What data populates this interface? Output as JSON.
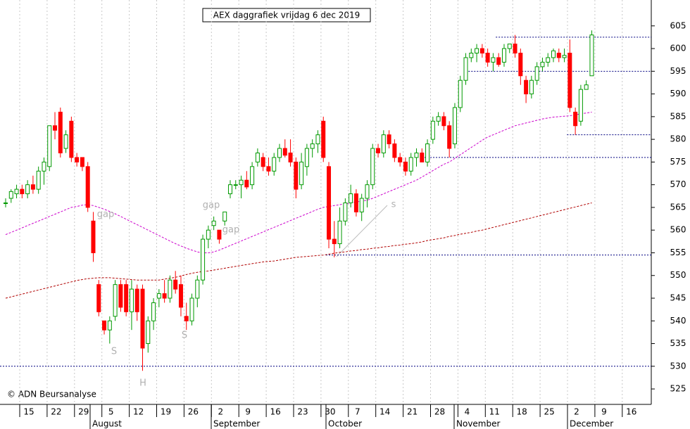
{
  "chart_data": {
    "type": "candlestick",
    "title": "AEX daggrafiek vrijdag 6 dec 2019",
    "credit": "© ADN Beursanalyse",
    "up_color": "#009900",
    "down_color": "#ff0000",
    "ylim": [
      521.6,
      610.7
    ],
    "yticks": [
      525,
      530,
      535,
      540,
      545,
      550,
      555,
      560,
      565,
      570,
      575,
      580,
      585,
      590,
      595,
      600,
      605
    ],
    "weeks": [
      "15",
      "22",
      "29",
      "5",
      "12",
      "19",
      "26",
      "2",
      "9",
      "16",
      "23",
      "30",
      "7",
      "14",
      "21",
      "28",
      "4",
      "11",
      "18",
      "25",
      "2",
      "9",
      "16"
    ],
    "months": [
      "August",
      "September",
      "October",
      "November",
      "December"
    ],
    "open": [
      566,
      567,
      568,
      569,
      568,
      570,
      569,
      573,
      574,
      583,
      586,
      578,
      584,
      576,
      576,
      574,
      562,
      548,
      540,
      538,
      541,
      548,
      548,
      542,
      547,
      547,
      535,
      540,
      545,
      546,
      545,
      549,
      548,
      541,
      540,
      545,
      549,
      558,
      561,
      560,
      562,
      568,
      570,
      570,
      571,
      570,
      575,
      576,
      574,
      573,
      576,
      578,
      577,
      575,
      570,
      574,
      578,
      579,
      584,
      574,
      558,
      557,
      562,
      566,
      568,
      564,
      567,
      570,
      578,
      577,
      581,
      579,
      576,
      575,
      573,
      576,
      577,
      575,
      580,
      584,
      585,
      583,
      579,
      587,
      593,
      598,
      599,
      600,
      599,
      597,
      598,
      597,
      600,
      601,
      599,
      593,
      590,
      593,
      596,
      597,
      598,
      599,
      598,
      599,
      586,
      584,
      591,
      594
    ],
    "high": [
      567,
      569,
      570,
      570,
      571,
      572,
      574,
      576,
      583,
      586,
      587,
      582,
      585,
      577,
      576,
      575,
      564,
      549,
      540,
      541,
      549,
      549,
      549,
      549,
      548,
      548,
      541,
      545,
      547,
      549,
      550,
      551,
      550,
      544,
      546,
      550,
      559,
      561,
      563,
      560,
      564,
      571,
      571,
      572,
      573,
      575,
      578,
      577,
      576,
      577,
      579,
      580,
      580,
      576,
      577,
      579,
      580,
      582,
      585,
      575,
      562,
      565,
      567,
      570,
      569,
      568,
      571,
      579,
      579,
      582,
      582,
      580,
      577,
      576,
      577,
      578,
      578,
      580,
      585,
      586,
      586,
      584,
      588,
      594,
      599,
      600,
      601,
      601,
      600,
      599,
      599,
      601,
      601,
      603,
      600,
      594,
      594,
      597,
      598,
      599,
      600,
      600,
      600,
      602,
      587,
      592,
      593,
      604
    ],
    "low": [
      565,
      566,
      567,
      567,
      567,
      568,
      568,
      570,
      573,
      580,
      576,
      577,
      575,
      574,
      573,
      564,
      553,
      541,
      537,
      535,
      540,
      542,
      541,
      538,
      540,
      529,
      533,
      538,
      543,
      544,
      544,
      546,
      541,
      538,
      539,
      543,
      548,
      556,
      560,
      557,
      561,
      567,
      569,
      567,
      569,
      569,
      574,
      573,
      572,
      572,
      575,
      576,
      574,
      567,
      569,
      572,
      576,
      577,
      575,
      556,
      554,
      556,
      561,
      565,
      563,
      562,
      565,
      569,
      576,
      576,
      578,
      575,
      574,
      572,
      572,
      574,
      575,
      574,
      579,
      583,
      582,
      576,
      578,
      586,
      592,
      597,
      597,
      598,
      596,
      595,
      596,
      596,
      599,
      598,
      592,
      588,
      589,
      592,
      595,
      596,
      597,
      597,
      597,
      586,
      581,
      583,
      591,
      594
    ],
    "close": [
      566,
      568.5,
      569,
      568,
      570,
      569,
      573,
      575,
      583,
      582,
      577,
      581,
      576,
      575,
      574,
      565,
      555,
      542,
      538,
      540,
      548,
      543,
      542,
      547,
      542,
      534,
      540,
      544,
      546,
      545,
      549,
      547,
      543,
      540,
      545,
      549,
      558,
      560,
      562,
      558,
      564,
      570,
      570,
      571,
      569.5,
      574,
      577,
      574,
      573,
      576,
      578,
      576.5,
      575,
      569,
      575,
      578,
      579,
      581,
      576,
      558,
      557,
      562,
      566,
      568,
      564,
      567,
      570,
      578,
      577,
      581,
      579,
      576,
      575,
      573,
      576,
      577,
      575,
      579,
      584,
      585,
      583,
      578,
      587,
      593,
      598,
      599,
      600,
      599,
      597,
      598,
      596.5,
      600,
      601,
      599,
      594,
      590,
      593,
      596,
      597,
      598,
      599.5,
      598,
      598.5,
      587,
      583,
      591,
      592,
      603
    ],
    "lines": [
      {
        "color": "#cc00cc",
        "values": [
          559,
          559.5,
          560,
          560.5,
          561,
          561.5,
          562,
          562.5,
          563,
          563.5,
          564,
          564.5,
          565,
          565.2,
          565.5,
          565.6,
          565.4,
          565,
          564.6,
          564.1,
          563.6,
          563,
          562.4,
          561.8,
          561.2,
          560.6,
          560,
          559.4,
          558.8,
          558.2,
          557.6,
          557,
          556.5,
          556,
          555.6,
          555.2,
          555,
          555,
          555.2,
          555.6,
          556.1,
          556.6,
          557.1,
          557.6,
          558.1,
          558.6,
          559.1,
          559.6,
          560.1,
          560.6,
          561.1,
          561.6,
          562.1,
          562.6,
          563.1,
          563.6,
          564.1,
          564.6,
          565,
          565.2,
          565.4,
          565.6,
          565.8,
          566,
          566.2,
          566.4,
          566.6,
          567,
          567.5,
          568,
          568.5,
          569,
          569.5,
          570,
          570.5,
          571,
          571.7,
          572.4,
          573.1,
          573.8,
          574.5,
          575,
          575.8,
          576.6,
          577.4,
          578.2,
          579,
          579.8,
          580.5,
          581,
          581.5,
          582,
          582.5,
          583,
          583.3,
          583.6,
          583.9,
          584.2,
          584.5,
          584.7,
          584.9,
          585,
          585.1,
          585.2,
          585.4,
          585.6,
          585.8,
          586
        ]
      },
      {
        "color": "#b00000",
        "values": [
          545,
          545.3,
          545.6,
          545.9,
          546.2,
          546.5,
          546.8,
          547.1,
          547.4,
          547.7,
          548,
          548.3,
          548.6,
          548.9,
          549.1,
          549.3,
          549.4,
          549.5,
          549.5,
          549.5,
          549.4,
          549.3,
          549.2,
          549.1,
          549,
          549,
          549,
          549,
          549,
          549.2,
          549.4,
          549.6,
          549.9,
          550.2,
          550.5,
          550.7,
          550.9,
          551,
          551.2,
          551.4,
          551.6,
          551.8,
          552,
          552.2,
          552.4,
          552.6,
          552.8,
          553,
          553.1,
          553.2,
          553.4,
          553.6,
          553.8,
          554,
          554.1,
          554.2,
          554.3,
          554.4,
          554.5,
          554.7,
          554.9,
          555.1,
          555.2,
          555.4,
          555.5,
          555.7,
          555.8,
          556,
          556.1,
          556.3,
          556.4,
          556.6,
          556.7,
          556.9,
          557,
          557.2,
          557.4,
          557.7,
          557.9,
          558.1,
          558.3,
          558.6,
          558.8,
          559.1,
          559.3,
          559.5,
          559.8,
          560,
          560.3,
          560.6,
          560.9,
          561.2,
          561.5,
          561.8,
          562.1,
          562.4,
          562.7,
          563,
          563.3,
          563.6,
          563.9,
          564.2,
          564.5,
          564.8,
          565.1,
          565.4,
          565.7,
          566
        ]
      }
    ],
    "levels": [
      {
        "value": 602.5,
        "from": 90
      },
      {
        "value": 595,
        "from": 85
      },
      {
        "value": 581,
        "from": 103
      },
      {
        "value": 576,
        "from": 77
      },
      {
        "value": 554.5,
        "from": 59
      },
      {
        "value": 530,
        "from": 0
      }
    ],
    "annotations": [
      "gap",
      "gap",
      "gap",
      "S",
      "H",
      "S",
      "s"
    ]
  }
}
